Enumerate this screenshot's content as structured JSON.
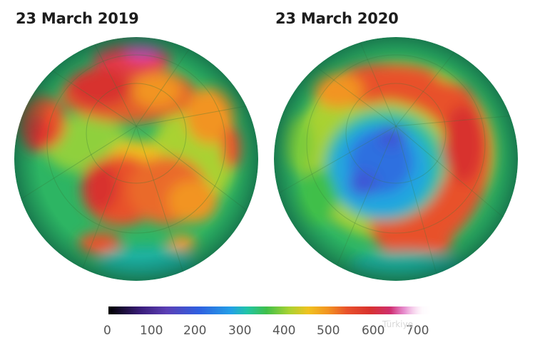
{
  "panels": [
    {
      "title": "23 March 2019",
      "state": "normal ozone, high values over pole"
    },
    {
      "title": "23 March 2020",
      "state": "ozone hole, low values over pole"
    }
  ],
  "colorbar": {
    "ticks": [
      "0",
      "100",
      "200",
      "300",
      "400",
      "500",
      "600",
      "700"
    ],
    "min": 0,
    "max": 700,
    "colors": [
      "#000000",
      "#5b3fb5",
      "#2f5fe0",
      "#23a0e6",
      "#3fbf4a",
      "#f0c21f",
      "#e8512b",
      "#d8322f",
      "#d84ab3",
      "#ffffff"
    ]
  },
  "watermark": "Türkiye"
}
